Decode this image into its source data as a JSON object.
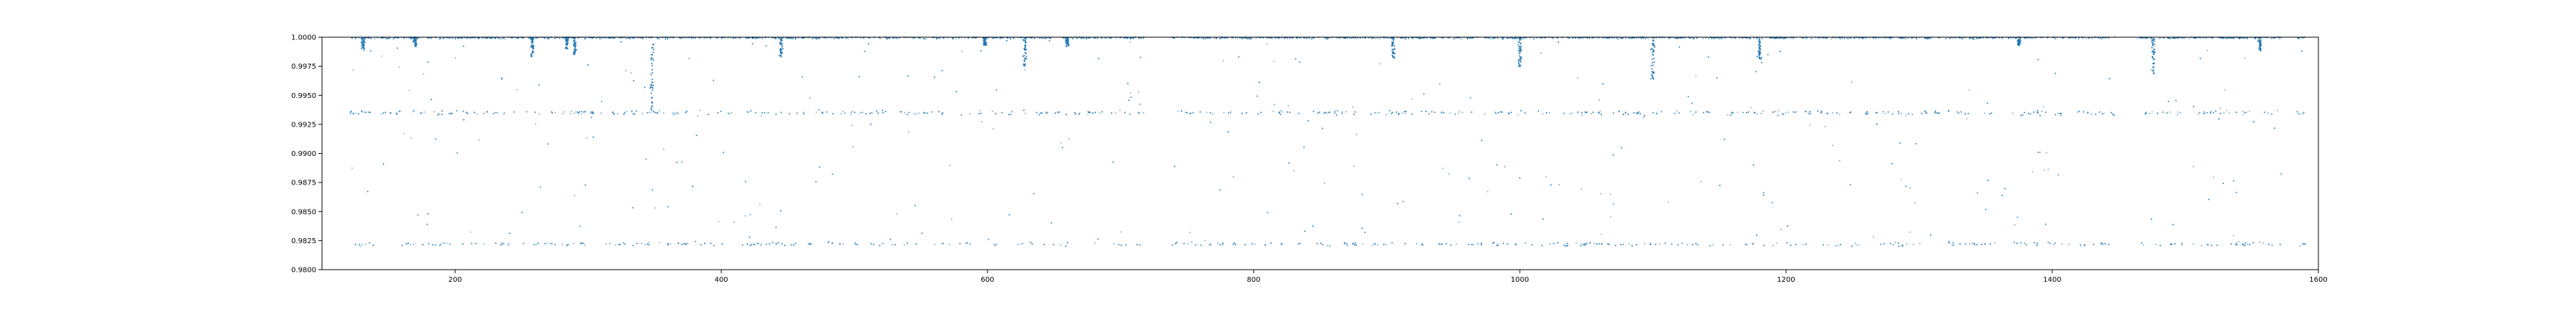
{
  "chart_data": {
    "type": "scatter",
    "title": "",
    "xlabel": "",
    "ylabel": "",
    "xlim": [
      100,
      1600
    ],
    "ylim": [
      0.98,
      1.0
    ],
    "xticks": [
      200,
      400,
      600,
      800,
      1000,
      1200,
      1400,
      1600
    ],
    "xtick_labels": [
      "200",
      "400",
      "600",
      "800",
      "1000",
      "1200",
      "1400",
      "1600"
    ],
    "yticks": [
      0.98,
      0.9825,
      0.985,
      0.9875,
      0.99,
      0.9925,
      0.995,
      0.9975,
      1.0
    ],
    "ytick_labels": [
      "0.9800",
      "0.9825",
      "0.9850",
      "0.9875",
      "0.9900",
      "0.9925",
      "0.9950",
      "0.9975",
      "1.0000"
    ],
    "grid": false,
    "legend": "none",
    "series_color": "#1f77b4",
    "data_x_range": [
      121,
      1590
    ],
    "data_gaps": [
      [
        718,
        737
      ],
      [
        1448,
        1464
      ],
      [
        1573,
        1584
      ]
    ],
    "observed_bands": {
      "baseline_flux": 1.0,
      "upper_band_flux": 0.9935,
      "lower_band_flux": 0.9822
    },
    "dips": [
      {
        "x": 131,
        "min_flux": 0.9988
      },
      {
        "x": 170,
        "min_flux": 0.9992
      },
      {
        "x": 258,
        "min_flux": 0.9983
      },
      {
        "x": 284,
        "min_flux": 0.999
      },
      {
        "x": 290,
        "min_flux": 0.9985
      },
      {
        "x": 348,
        "min_flux": 0.9935
      },
      {
        "x": 445,
        "min_flux": 0.9983
      },
      {
        "x": 598,
        "min_flux": 0.9993
      },
      {
        "x": 628,
        "min_flux": 0.9972
      },
      {
        "x": 660,
        "min_flux": 0.9992
      },
      {
        "x": 905,
        "min_flux": 0.9981
      },
      {
        "x": 1000,
        "min_flux": 0.9974
      },
      {
        "x": 1100,
        "min_flux": 0.9964
      },
      {
        "x": 1180,
        "min_flux": 0.9981
      },
      {
        "x": 1375,
        "min_flux": 0.9993
      },
      {
        "x": 1476,
        "min_flux": 0.9968
      },
      {
        "x": 1556,
        "min_flux": 0.9988
      }
    ]
  }
}
